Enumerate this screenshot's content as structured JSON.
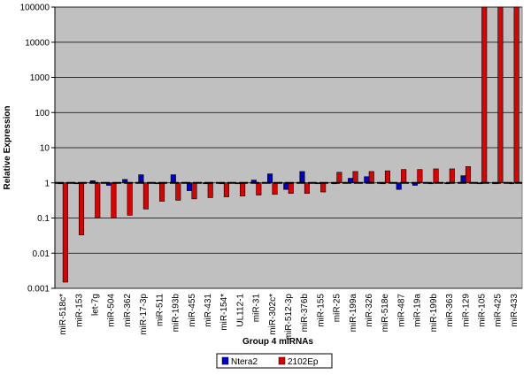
{
  "chart_data": {
    "type": "bar",
    "x_label": "Group 4 miRNAs",
    "y_label": "Relative Expression",
    "log_scale": true,
    "grid": true,
    "legend": "bottom",
    "categories": [
      "miR-518c*",
      "miR-153",
      "let-7g",
      "miR-504",
      "miR-362",
      "miR-17-3p",
      "miR-511",
      "miR-193b",
      "miR-455",
      "miR-431",
      "miR-154*",
      "UL112-1",
      "miR-31",
      "miR-302c*",
      "miR-512-3p",
      "miR-376b",
      "miR-155",
      "miR-25",
      "miR-199a",
      "miR-326",
      "miR-518e",
      "miR-487",
      "miR-19a",
      "miR-199b",
      "miR-363",
      "miR-129",
      "miR-105",
      "miR-425",
      "miR-433"
    ],
    "series": [
      {
        "name": "Ntera2",
        "color": "#0000cc",
        "values": [
          1,
          1,
          1.15,
          0.85,
          1.25,
          1.7,
          1,
          1.7,
          0.6,
          1,
          1,
          1,
          1.2,
          1.8,
          0.65,
          2.1,
          1,
          1,
          1.35,
          1.5,
          1,
          0.65,
          0.85,
          1,
          1,
          1.6,
          1,
          1,
          1
        ]
      },
      {
        "name": "2102Ep",
        "color": "#dd0000",
        "values": [
          0.0015,
          0.033,
          0.1,
          0.1,
          0.12,
          0.18,
          0.3,
          0.32,
          0.35,
          0.38,
          0.4,
          0.42,
          0.45,
          0.47,
          0.5,
          0.5,
          0.55,
          2,
          2.1,
          2.1,
          2.2,
          2.4,
          2.4,
          2.5,
          2.5,
          2.9,
          100000,
          100000,
          100000
        ]
      }
    ],
    "ylim": [
      0.001,
      100000
    ],
    "yticks": [
      0.001,
      0.01,
      0.1,
      1,
      10,
      100,
      1000,
      10000,
      100000
    ]
  }
}
